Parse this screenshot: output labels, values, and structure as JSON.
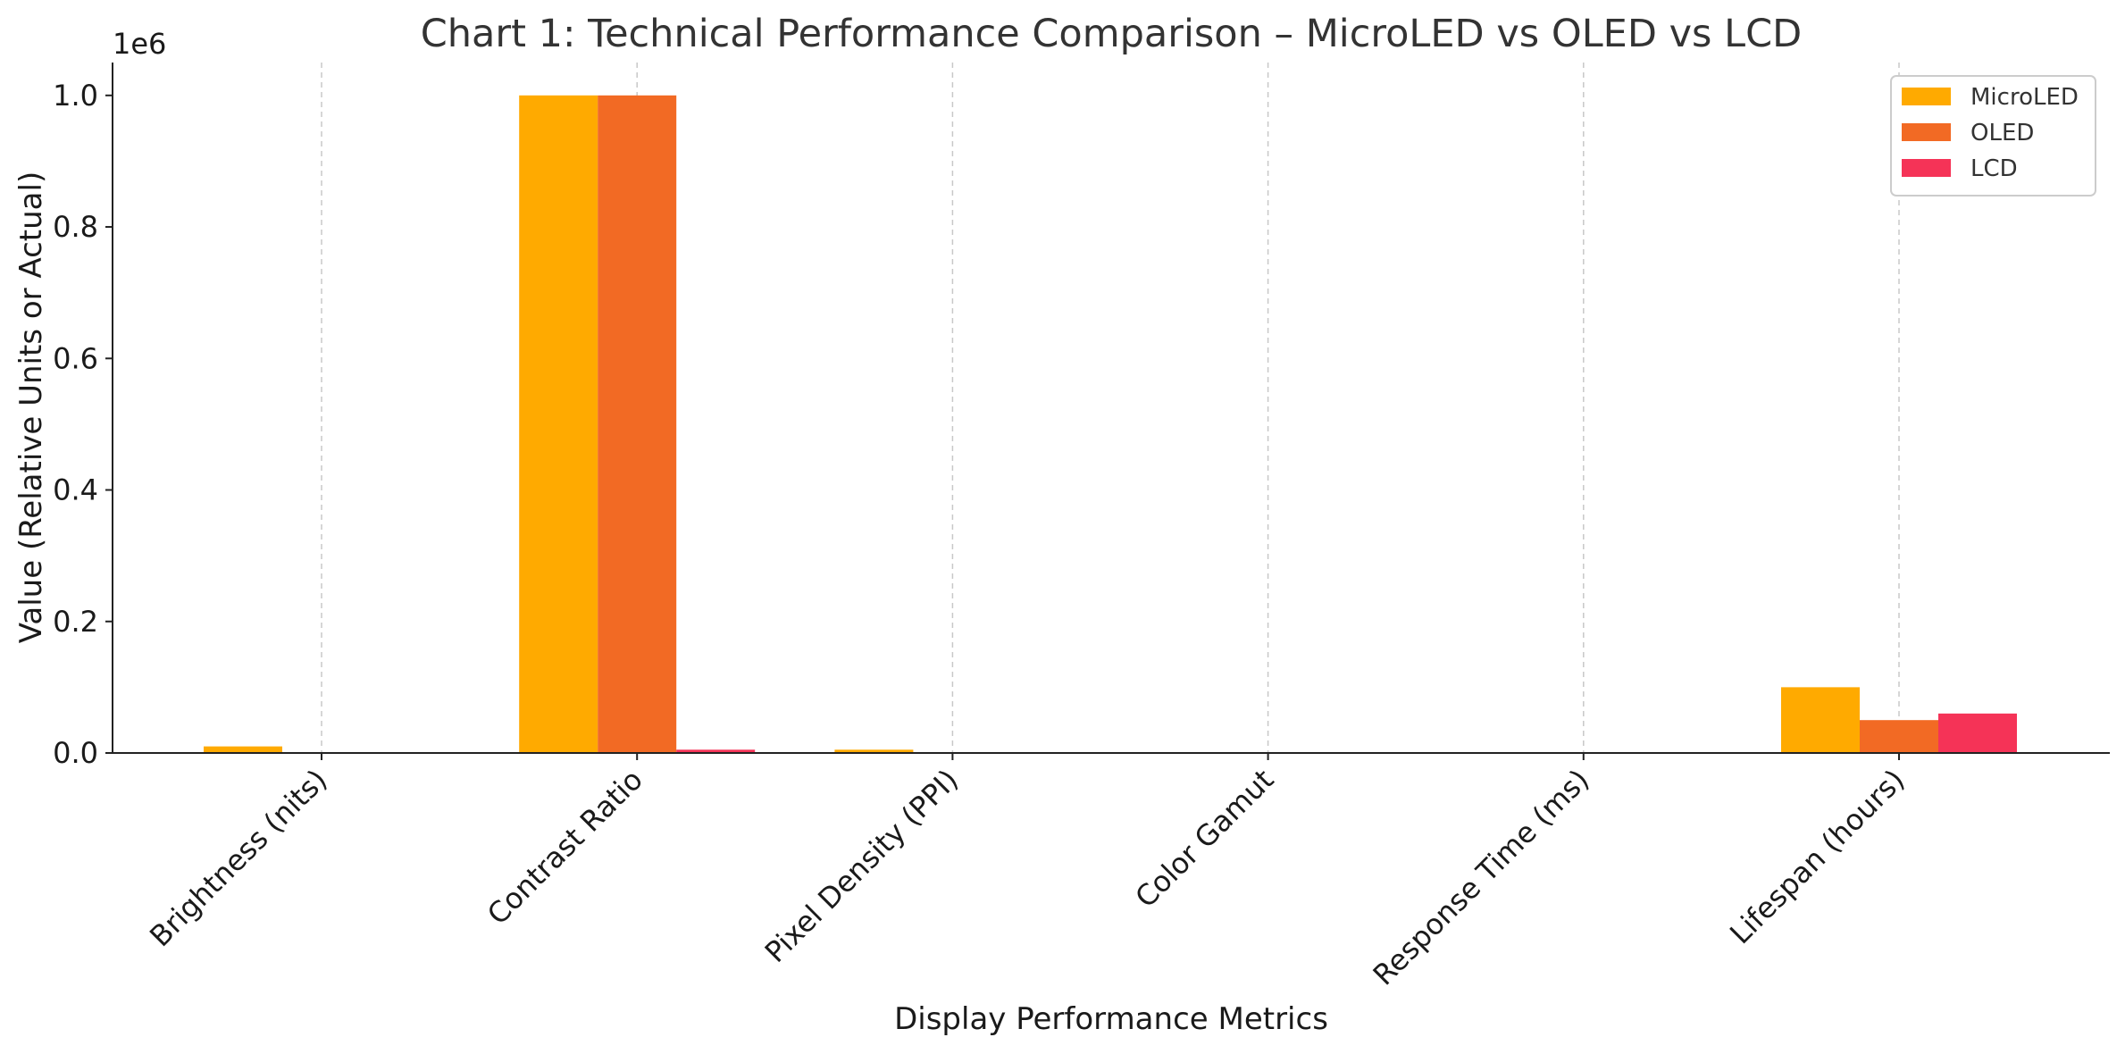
{
  "chart_data": {
    "type": "bar",
    "title": "Chart 1: Technical Performance Comparison – MicroLED vs OLED vs LCD",
    "xlabel": "Display Performance Metrics",
    "ylabel": "Value (Relative Units or Actual)",
    "y_offset_label": "1e6",
    "categories": [
      "Brightness (nits)",
      "Contrast Ratio",
      "Pixel Density (PPI)",
      "Color Gamut",
      "Response Time (ms)",
      "Lifespan (hours)"
    ],
    "series": [
      {
        "name": "MicroLED",
        "color": "#FFAA00",
        "values": [
          10000,
          1000000,
          5000,
          100,
          0.001,
          100000
        ]
      },
      {
        "name": "OLED",
        "color": "#F26A24",
        "values": [
          1000,
          1000000,
          500,
          100,
          0.1,
          50000
        ]
      },
      {
        "name": "LCD",
        "color": "#F53357",
        "values": [
          800,
          5000,
          300,
          80,
          5,
          60000
        ]
      }
    ],
    "ylim": [
      0,
      1050000
    ],
    "yticks": [
      0,
      200000,
      400000,
      600000,
      800000,
      1000000
    ],
    "ytick_labels": [
      "0.0",
      "0.2",
      "0.4",
      "0.6",
      "0.8",
      "1.0"
    ],
    "grid": "x-dashed",
    "legend": "top-right"
  }
}
